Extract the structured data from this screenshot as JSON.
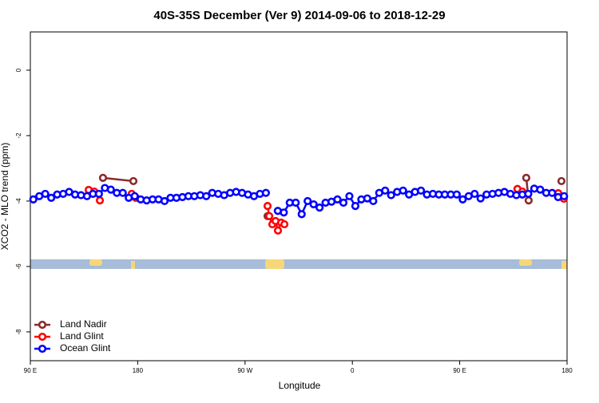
{
  "chart_data": {
    "type": "line",
    "title": "40S-35S December (Ver 9)   2014-09-06 to 2018-12-29",
    "x_label": "Longitude",
    "y_label": "XCO2 - MLO trend (ppm)",
    "xlim": [
      90,
      540
    ],
    "xticks": [
      {
        "value": 90,
        "label": "90 E"
      },
      180,
      {
        "value": 270,
        "label": "90 W"
      },
      {
        "value": 360,
        "label": "0"
      },
      {
        "value": 450,
        "label": "90 E"
      },
      180
    ],
    "ylim": [
      -8.88,
      1.17
    ],
    "yticks": [
      0,
      -2,
      -4,
      -6,
      -8
    ],
    "legend": "bottom-left",
    "series": [
      {
        "name": "Land Nadir",
        "color": "#8b2a2a",
        "x": [
          150.9,
          176.4,
          230,
          288.9,
          400,
          505.8,
          507.8,
          520,
          535.3
        ],
        "values": [
          -3.29,
          -3.39,
          null,
          -4.46,
          null,
          -3.29,
          -3.98,
          null,
          -3.39
        ]
      },
      {
        "name": "Land Glint",
        "color": "#ff0000",
        "x": [
          138.9,
          143.6,
          148.3,
          160,
          175.0,
          178.4,
          230,
          288.9,
          290.3,
          292.9,
          295.6,
          297.6,
          300.3,
          303.0,
          400,
          498.4,
          502.5,
          520,
          532.6,
          537.3
        ],
        "values": [
          -3.66,
          -3.71,
          -3.98,
          null,
          -3.78,
          -3.9,
          null,
          -4.15,
          -4.46,
          -4.71,
          -4.61,
          -4.9,
          -4.66,
          -4.71,
          null,
          -3.63,
          -3.71,
          null,
          -3.76,
          -3.93
        ]
      },
      {
        "name": "Ocean Glint",
        "color": "#0000ff",
        "x": [
          92.5,
          97.5,
          102.5,
          107.5,
          112.5,
          117.5,
          122.5,
          127.5,
          132.5,
          137.5,
          142.5,
          147.5,
          152.5,
          157.5,
          162.5,
          167.5,
          172.5,
          177.5,
          182.5,
          187.5,
          192.5,
          197.5,
          202.5,
          207.5,
          212.5,
          217.5,
          222.5,
          227.5,
          232.5,
          237.5,
          242.5,
          247.5,
          252.5,
          257.5,
          262.5,
          267.5,
          272.5,
          277.5,
          282.5,
          287.5,
          292.5,
          297.5,
          302.5,
          307.5,
          312.5,
          317.5,
          322.5,
          327.5,
          332.5,
          337.5,
          342.5,
          347.5,
          352.5,
          357.5,
          362.5,
          367.5,
          372.5,
          377.5,
          382.5,
          387.5,
          392.5,
          397.5,
          402.5,
          407.5,
          412.5,
          417.5,
          422.5,
          427.5,
          432.5,
          437.5,
          442.5,
          447.5,
          452.5,
          457.5,
          462.5,
          467.5,
          472.5,
          477.5,
          482.5,
          487.5,
          492.5,
          497.5,
          502.5,
          507.5,
          512.5,
          517.5,
          522.5,
          527.5,
          532.5,
          537.5
        ],
        "values": [
          -3.95,
          -3.85,
          -3.78,
          -3.9,
          -3.8,
          -3.78,
          -3.72,
          -3.8,
          -3.82,
          -3.85,
          -3.78,
          -3.78,
          -3.6,
          -3.65,
          -3.75,
          -3.75,
          -3.9,
          -3.85,
          -3.95,
          -3.98,
          -3.95,
          -3.95,
          -4.0,
          -3.9,
          -3.9,
          -3.88,
          -3.85,
          -3.85,
          -3.82,
          -3.85,
          -3.75,
          -3.78,
          -3.82,
          -3.75,
          -3.72,
          -3.75,
          -3.8,
          -3.85,
          -3.78,
          -3.75,
          null,
          -4.3,
          -4.35,
          -4.05,
          -4.05,
          -4.4,
          -4.0,
          -4.1,
          -4.2,
          -4.05,
          -4.02,
          -3.95,
          -4.05,
          -3.85,
          -4.15,
          -3.95,
          -3.92,
          -4.0,
          -3.75,
          -3.68,
          -3.82,
          -3.72,
          -3.68,
          -3.8,
          -3.72,
          -3.68,
          -3.8,
          -3.78,
          -3.8,
          -3.8,
          -3.8,
          -3.8,
          -3.95,
          -3.85,
          -3.78,
          -3.92,
          -3.8,
          -3.78,
          -3.75,
          -3.72,
          -3.78,
          -3.82,
          -3.8,
          -3.78,
          -3.62,
          -3.65,
          -3.75,
          -3.75,
          -3.88,
          -3.85
        ]
      }
    ]
  }
}
